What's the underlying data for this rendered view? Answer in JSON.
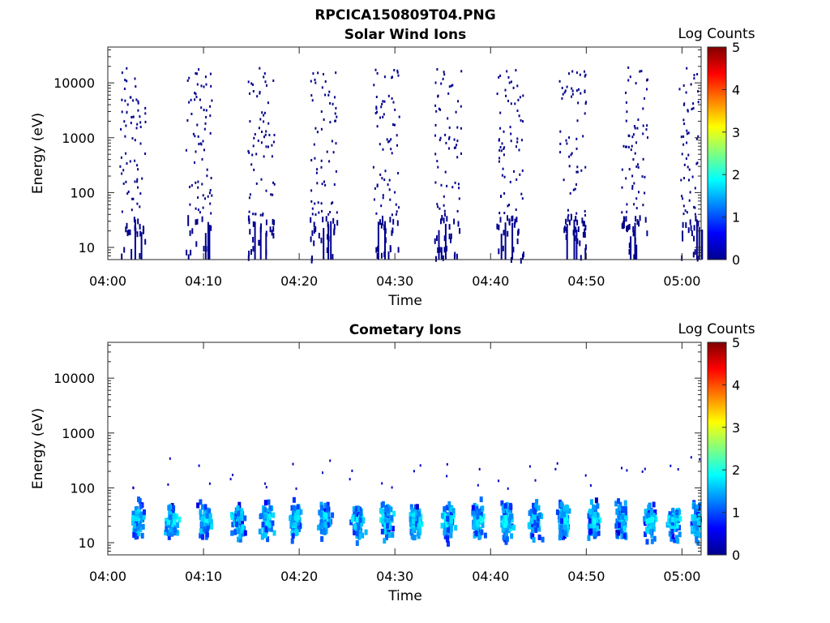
{
  "figure_title": "RPCICA150809T04.PNG",
  "chart_data": [
    {
      "type": "heatmap",
      "title": "Solar Wind Ions",
      "xlabel": "Time",
      "ylabel": "Energy (eV)",
      "x_ticks": [
        "04:00",
        "04:10",
        "04:20",
        "04:30",
        "04:40",
        "04:50",
        "05:00"
      ],
      "x_range": [
        "04:00",
        "05:02"
      ],
      "y_scale": "log",
      "y_ticks": [
        10,
        100,
        1000,
        10000
      ],
      "y_tick_labels": [
        "10",
        "100",
        "1000",
        "10000"
      ],
      "y_range": [
        6,
        45000
      ],
      "colorbar": {
        "label": "Log Counts",
        "range": [
          0,
          5
        ],
        "ticks": [
          "0",
          "1",
          "2",
          "3",
          "4",
          "5"
        ]
      },
      "scan_times": [
        "04:02:30",
        "04:09:30",
        "04:16:00",
        "04:22:30",
        "04:29:00",
        "04:35:30",
        "04:42:00",
        "04:48:30",
        "04:55:00",
        "05:01:00"
      ],
      "energy_range_counts": "sparse single counts from ~10 eV to ~20000 eV; strongest near 10-30 eV",
      "max_log_counts": 1.0
    },
    {
      "type": "heatmap",
      "title": "Cometary Ions",
      "xlabel": "Time",
      "ylabel": "Energy (eV)",
      "x_ticks": [
        "04:00",
        "04:10",
        "04:20",
        "04:30",
        "04:40",
        "04:50",
        "05:00"
      ],
      "x_range": [
        "04:00",
        "05:02"
      ],
      "y_scale": "log",
      "y_ticks": [
        10,
        100,
        1000,
        10000
      ],
      "y_tick_labels": [
        "10",
        "100",
        "1000",
        "10000"
      ],
      "y_range": [
        6,
        45000
      ],
      "colorbar": {
        "label": "Log Counts",
        "range": [
          0,
          5
        ],
        "ticks": [
          "0",
          "1",
          "2",
          "3",
          "4",
          "5"
        ]
      },
      "scan_times": [
        "04:03:00",
        "04:06:30",
        "04:10:00",
        "04:13:30",
        "04:16:30",
        "04:19:30",
        "04:22:30",
        "04:26:00",
        "04:29:00",
        "04:32:00",
        "04:35:30",
        "04:38:30",
        "04:41:30",
        "04:44:30",
        "04:47:30",
        "04:50:30",
        "04:53:30",
        "04:56:30",
        "04:59:00",
        "05:01:30"
      ],
      "energy_range_counts": "dense counts between ~8 eV and ~200 eV; peak near 20-40 eV",
      "max_log_counts": 2.0
    }
  ]
}
